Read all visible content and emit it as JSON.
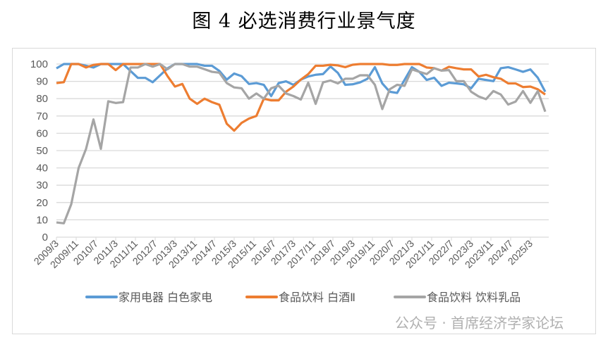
{
  "title": "图 4  必选消费行业景气度",
  "watermark": "公众号 · 首席经济学家论坛",
  "chart_data": {
    "type": "line",
    "title": "图 4  必选消费行业景气度",
    "ylim": [
      0,
      100
    ],
    "yticks": [
      0,
      10,
      20,
      30,
      40,
      50,
      60,
      70,
      80,
      90,
      100
    ],
    "grid": true,
    "legend_position": "bottom",
    "x_tick_labels": [
      "2009/3",
      "2009/11",
      "2010/7",
      "2011/3",
      "2011/11",
      "2012/7",
      "2013/3",
      "2013/11",
      "2014/7",
      "2015/3",
      "2015/11",
      "2016/7",
      "2017/3",
      "2017/11",
      "2018/7",
      "2019/3",
      "2019/11",
      "2020/7",
      "2021/3",
      "2021/11",
      "2022/7",
      "2023/3",
      "2023/11",
      "2024/7",
      "2025/3"
    ],
    "x": [
      "2009/3",
      "2009/6",
      "2009/9",
      "2009/12",
      "2010/3",
      "2010/6",
      "2010/9",
      "2010/12",
      "2011/3",
      "2011/6",
      "2011/9",
      "2011/12",
      "2012/3",
      "2012/6",
      "2012/9",
      "2012/12",
      "2013/3",
      "2013/6",
      "2013/9",
      "2013/12",
      "2014/3",
      "2014/6",
      "2014/9",
      "2014/12",
      "2015/3",
      "2015/6",
      "2015/9",
      "2015/12",
      "2016/3",
      "2016/6",
      "2016/9",
      "2016/12",
      "2017/3",
      "2017/6",
      "2017/9",
      "2017/12",
      "2018/3",
      "2018/6",
      "2018/9",
      "2018/12",
      "2019/3",
      "2019/6",
      "2019/9",
      "2019/12",
      "2020/3",
      "2020/6",
      "2020/9",
      "2020/12",
      "2021/3",
      "2021/6",
      "2021/9",
      "2021/12",
      "2022/3",
      "2022/6",
      "2022/9",
      "2022/12",
      "2023/3",
      "2023/6",
      "2023/9",
      "2023/12",
      "2024/3",
      "2024/6",
      "2024/9",
      "2024/12",
      "2025/3",
      "2025/6",
      "2025/9"
    ],
    "series": [
      {
        "name": "家用电器 白色家电",
        "color": "#5b9bd5",
        "values": [
          97.5,
          100,
          100,
          100,
          99,
          98,
          100,
          100,
          100,
          100,
          96,
          92,
          92,
          89.5,
          93.5,
          97.5,
          100,
          100,
          100,
          100,
          99,
          99,
          96,
          91,
          94.5,
          93,
          88.5,
          89,
          88,
          81.5,
          89,
          90,
          88,
          91,
          92.8,
          93.8,
          94.2,
          98.6,
          94.9,
          88,
          88.3,
          89.4,
          91.5,
          98.2,
          88.8,
          84,
          83.3,
          90.8,
          98.2,
          95.5,
          90.8,
          92.1,
          87.4,
          89.2,
          88.8,
          88.3,
          86,
          91.5,
          90.8,
          90.1,
          97.6,
          98.2,
          96.9,
          95.5,
          96.9,
          92.1,
          84
        ]
      },
      {
        "name": "食品饮料 白酒Ⅱ",
        "color": "#ed7d31",
        "values": [
          89,
          89.5,
          100,
          100,
          98,
          99.5,
          100,
          100,
          96.5,
          100,
          100,
          100,
          100,
          100,
          100,
          93,
          87,
          88.5,
          80,
          77,
          80,
          78,
          76.5,
          65.5,
          61.5,
          66,
          68.5,
          70,
          80,
          79,
          79,
          84,
          87,
          91,
          94.2,
          99,
          99,
          99.6,
          99.2,
          98.2,
          99.6,
          100,
          100,
          100,
          100,
          99.5,
          99.5,
          100,
          100,
          100,
          98,
          97.6,
          96.2,
          98.4,
          97.6,
          96.9,
          96.9,
          92.8,
          93.8,
          92.4,
          91.5,
          88.8,
          88.8,
          86.7,
          87,
          85.4,
          82.4
        ]
      },
      {
        "name": "食品饮料 饮料乳品",
        "color": "#a5a5a5",
        "values": [
          8.5,
          8,
          19,
          40,
          51,
          68,
          51,
          78.5,
          77.5,
          78,
          98,
          98,
          100,
          98.5,
          100,
          97,
          100,
          100,
          98.5,
          98.5,
          97,
          95.5,
          95,
          89,
          86.5,
          86,
          80,
          83,
          80,
          86,
          87.5,
          83,
          81.5,
          79.5,
          89.2,
          77,
          89.4,
          90.5,
          88.8,
          91.5,
          91.5,
          93.5,
          93.5,
          88,
          74,
          85.4,
          88,
          87.4,
          96.9,
          95.5,
          94.2,
          97.6,
          96.2,
          96.5,
          90.1,
          90.1,
          84,
          81.3,
          79.7,
          84.4,
          82.4,
          76.6,
          78.3,
          84.4,
          77.6,
          84.4,
          72.5
        ]
      }
    ]
  }
}
